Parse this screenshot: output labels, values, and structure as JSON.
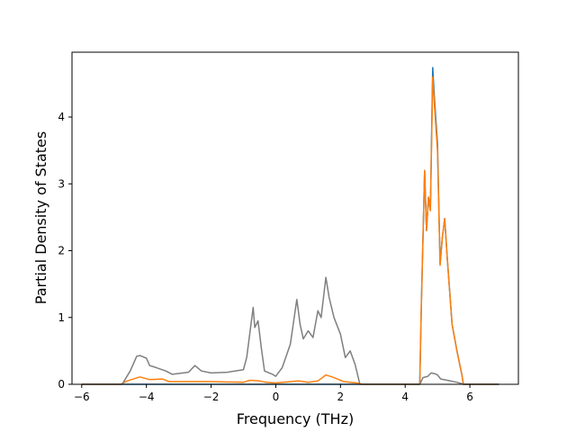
{
  "chart_data": {
    "type": "line",
    "title": "",
    "xlabel": "Frequency (THz)",
    "ylabel": "Partial Density of States",
    "xlim": [
      -6.3,
      7.5
    ],
    "ylim": [
      0,
      4.97
    ],
    "xticks": [
      -6,
      -4,
      -2,
      0,
      2,
      4,
      6
    ],
    "yticks": [
      0,
      1,
      2,
      3,
      4
    ],
    "grid": false,
    "legend": "none",
    "colors": {
      "series_a": "#1f77b4",
      "series_b": "#ff7f0e",
      "series_c": "#9467bd",
      "series_d": "#8c564b",
      "series_e": "#e377c2",
      "series_f": "#7f7f7f"
    },
    "series": [
      {
        "color": "#1f77b4",
        "x": [
          -6.0,
          -4.8,
          4.45,
          4.5,
          4.6,
          4.66,
          4.72,
          4.78,
          4.85,
          4.9,
          5.0,
          5.08,
          5.15,
          5.22,
          5.3,
          5.45,
          5.6,
          5.75,
          5.8,
          6.9
        ],
        "y": [
          0,
          0,
          0,
          1.2,
          3.2,
          2.3,
          2.8,
          2.6,
          4.74,
          4.3,
          3.6,
          1.8,
          2.2,
          2.48,
          1.9,
          0.9,
          0.5,
          0.15,
          0,
          0
        ]
      },
      {
        "color": "#ff7f0e",
        "x": [
          -6.0,
          -4.8,
          -4.6,
          -4.2,
          -3.9,
          -3.5,
          -3.3,
          -2.0,
          -1.0,
          -0.8,
          -0.5,
          -0.3,
          0.0,
          0.7,
          1.0,
          1.3,
          1.55,
          1.8,
          2.1,
          2.5,
          2.7,
          4.45,
          4.5,
          4.6,
          4.66,
          4.72,
          4.78,
          4.85,
          4.9,
          5.0,
          5.08,
          5.15,
          5.22,
          5.3,
          5.45,
          5.6,
          5.75,
          5.8,
          6.9
        ],
        "y": [
          0,
          0,
          0.05,
          0.11,
          0.07,
          0.08,
          0.04,
          0.04,
          0.03,
          0.06,
          0.05,
          0.03,
          0.02,
          0.05,
          0.03,
          0.05,
          0.14,
          0.1,
          0.04,
          0.02,
          0,
          0,
          1.2,
          3.2,
          2.3,
          2.8,
          2.6,
          4.6,
          4.2,
          3.5,
          1.78,
          2.2,
          2.48,
          1.9,
          0.9,
          0.5,
          0.15,
          0,
          0
        ]
      },
      {
        "color": "#7f7f7f",
        "x": [
          -6.0,
          -4.75,
          -4.5,
          -4.3,
          -4.2,
          -4.0,
          -3.9,
          -3.7,
          -3.4,
          -3.2,
          -2.7,
          -2.5,
          -2.3,
          -2.0,
          -1.5,
          -1.0,
          -0.9,
          -0.7,
          -0.65,
          -0.55,
          -0.45,
          -0.35,
          -0.1,
          0.0,
          0.2,
          0.45,
          0.65,
          0.75,
          0.85,
          1.0,
          1.15,
          1.3,
          1.4,
          1.55,
          1.65,
          1.8,
          2.0,
          2.15,
          2.3,
          2.45,
          2.6,
          4.45,
          4.55,
          4.7,
          4.8,
          4.9,
          5.0,
          5.1,
          5.3,
          5.6,
          5.75,
          5.8,
          6.9
        ],
        "y": [
          0,
          0,
          0.2,
          0.42,
          0.43,
          0.39,
          0.28,
          0.25,
          0.2,
          0.15,
          0.18,
          0.28,
          0.2,
          0.17,
          0.18,
          0.22,
          0.4,
          1.15,
          0.85,
          0.95,
          0.55,
          0.2,
          0.15,
          0.12,
          0.25,
          0.6,
          1.27,
          0.9,
          0.68,
          0.8,
          0.7,
          1.1,
          1.0,
          1.6,
          1.3,
          1.0,
          0.75,
          0.4,
          0.5,
          0.3,
          0.0,
          0.0,
          0.1,
          0.12,
          0.17,
          0.16,
          0.14,
          0.08,
          0.06,
          0.03,
          0.01,
          0,
          0
        ]
      }
    ]
  }
}
